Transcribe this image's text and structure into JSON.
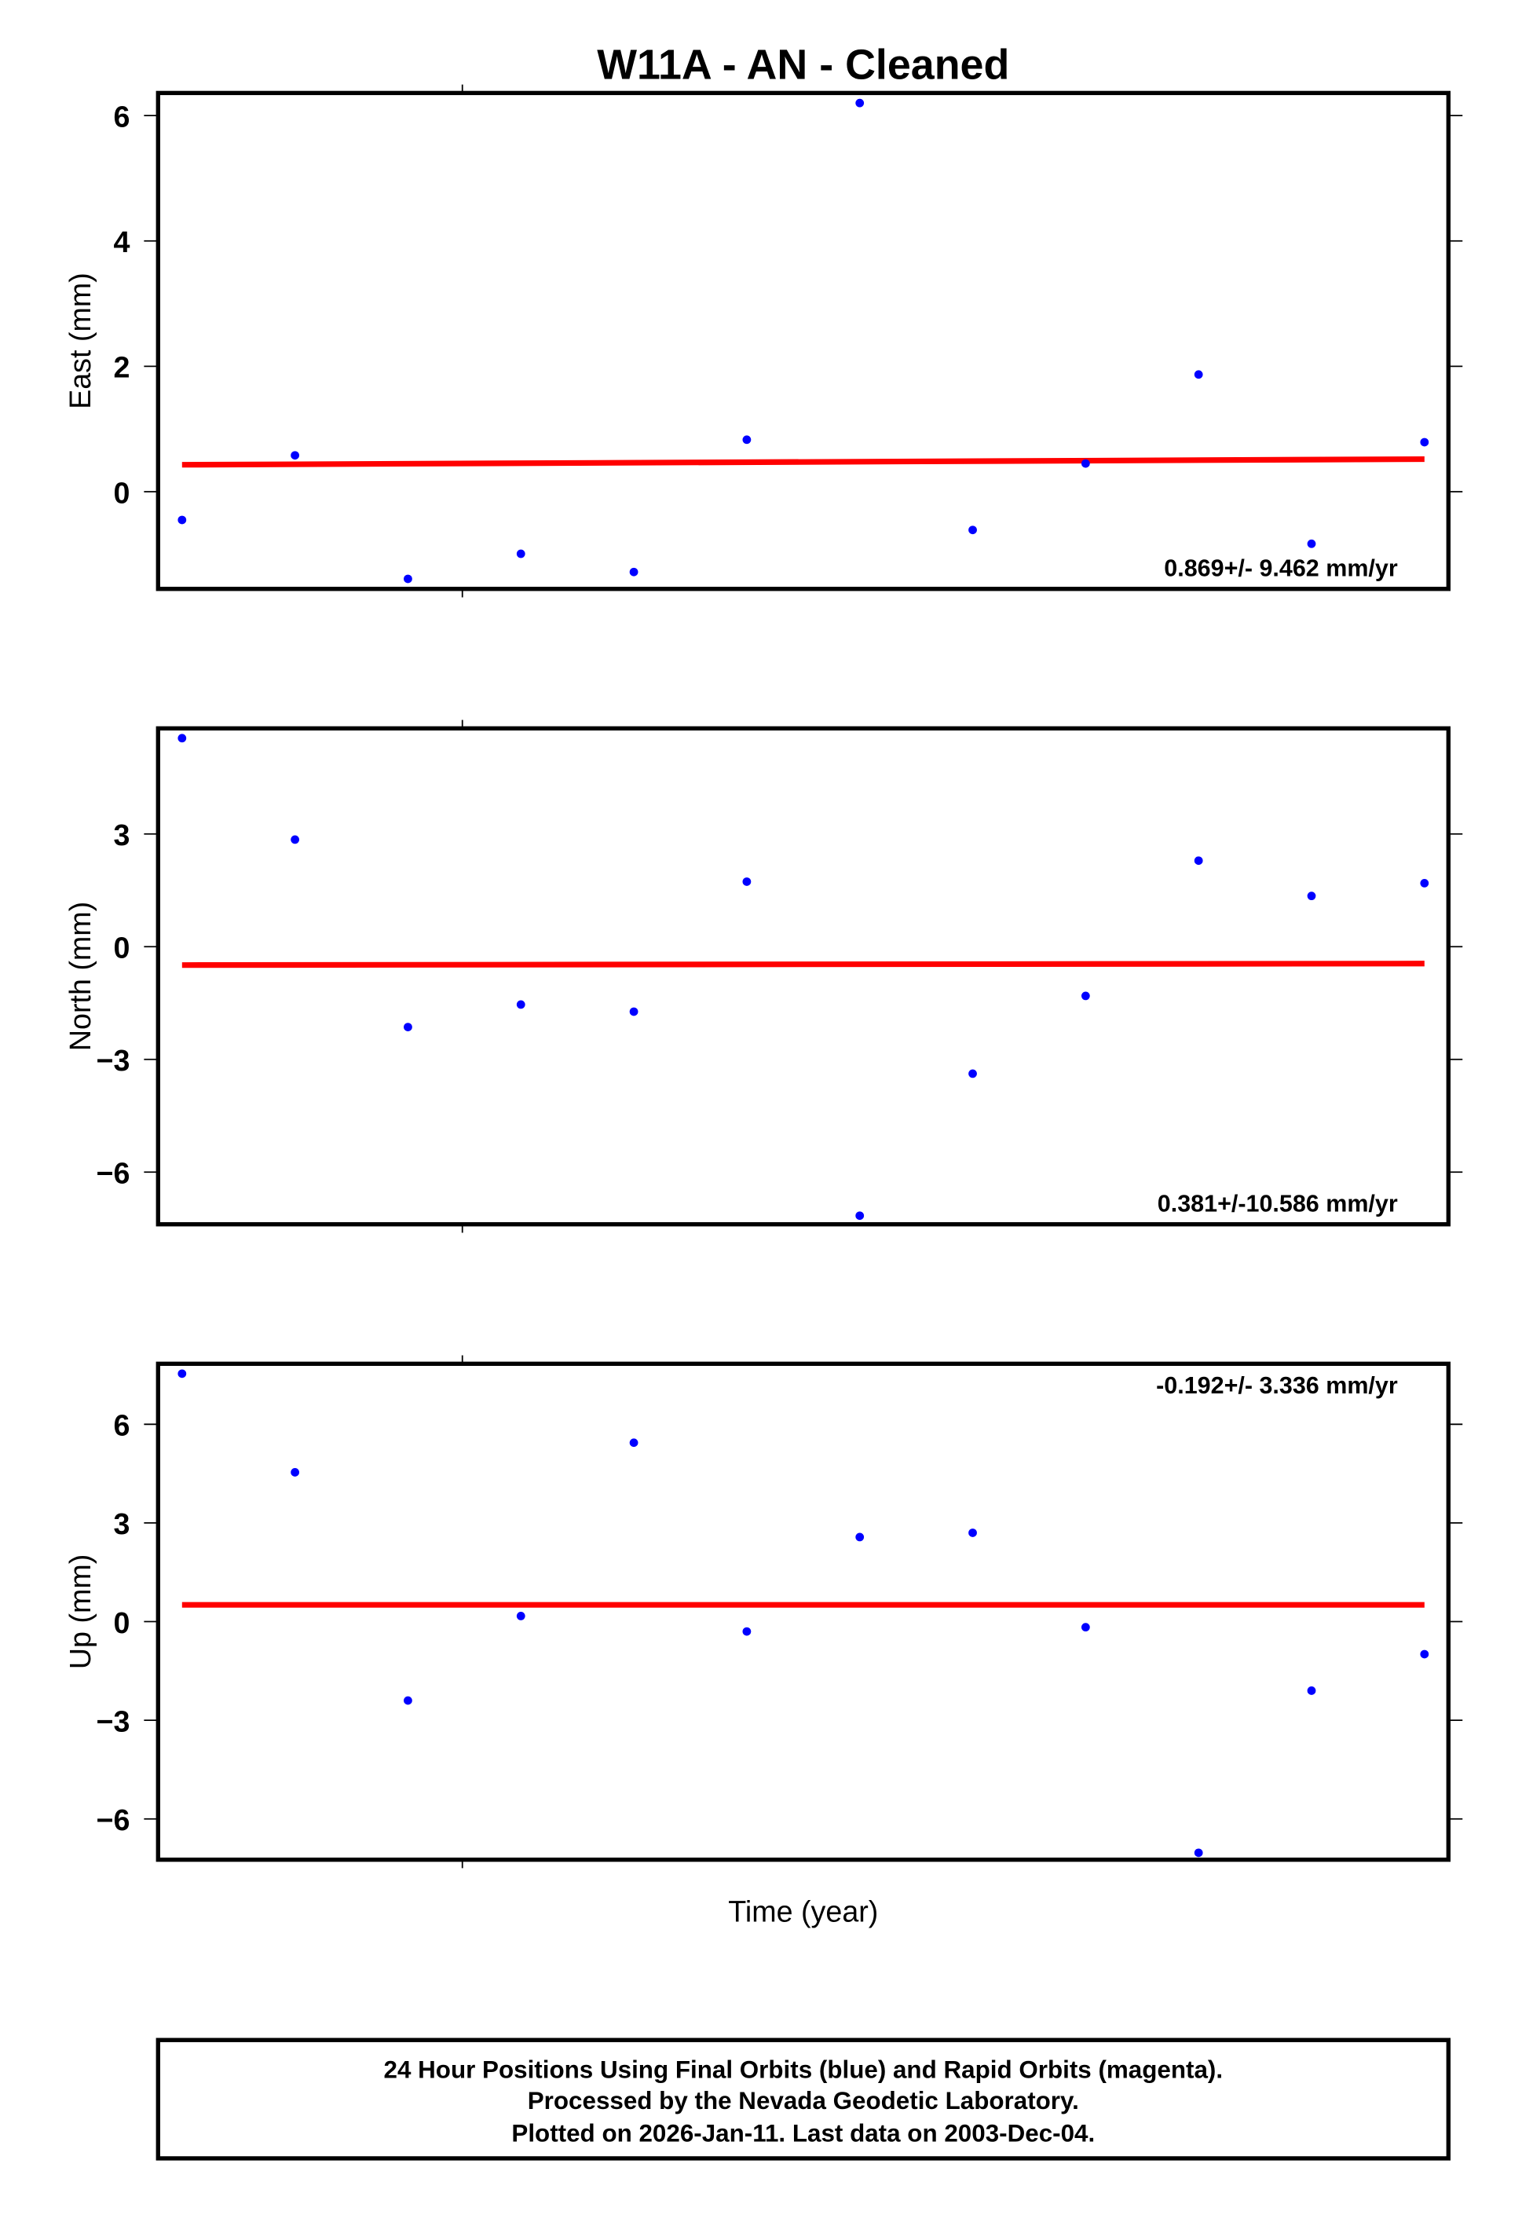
{
  "chart_data": {
    "type": "scatter",
    "title": "W11A  - AN - Cleaned",
    "xlabel": "Time (year)",
    "x": [
      0,
      1,
      2,
      3,
      4,
      5,
      6,
      7,
      8,
      9,
      10,
      11
    ],
    "panels": [
      {
        "name": "east",
        "ylabel": "East (mm)",
        "ylim": [
          -1.55,
          6.36
        ],
        "yticks": [
          0,
          2,
          4,
          6
        ],
        "ytick_labels": [
          "0",
          "2",
          "4",
          "6"
        ],
        "values": [
          -0.45,
          0.58,
          -1.39,
          -0.99,
          -1.28,
          0.83,
          6.2,
          -0.61,
          0.45,
          1.87,
          -0.83,
          0.79
        ],
        "trend": [
          0.43,
          0.52
        ],
        "rate_label": "0.869+/- 9.462 mm/yr",
        "rate_position": "bottom-right"
      },
      {
        "name": "north",
        "ylabel": "North (mm)",
        "ylim": [
          -7.39,
          5.81
        ],
        "yticks": [
          -6,
          -3,
          0,
          3
        ],
        "ytick_labels": [
          "−6",
          "−3",
          "0",
          "3"
        ],
        "values": [
          5.55,
          2.85,
          -2.14,
          -1.54,
          -1.73,
          1.73,
          -7.16,
          -3.38,
          -1.31,
          2.29,
          1.35,
          1.69
        ],
        "trend": [
          -0.49,
          -0.45
        ],
        "rate_label": "0.381+/-10.586 mm/yr",
        "rate_position": "bottom-right"
      },
      {
        "name": "up",
        "ylabel": "Up (mm)",
        "ylim": [
          -7.24,
          7.84
        ],
        "yticks": [
          -6,
          -3,
          0,
          3,
          6
        ],
        "ytick_labels": [
          "−6",
          "−3",
          "0",
          "3",
          "6"
        ],
        "values": [
          7.54,
          4.54,
          -2.4,
          0.17,
          5.44,
          -0.3,
          2.57,
          2.7,
          -0.17,
          -7.03,
          -2.1,
          -0.99
        ],
        "trend": [
          0.51,
          0.51
        ],
        "rate_label": "-0.192+/- 3.336 mm/yr",
        "rate_position": "top-right"
      }
    ],
    "colors": {
      "points": "#0000ff",
      "trend": "#ff0000"
    },
    "footer": [
      "24 Hour Positions Using Final Orbits (blue) and Rapid Orbits (magenta).",
      "Processed by the Nevada Geodetic Laboratory.",
      "Plotted on 2026-Jan-11. Last data on 2003-Dec-04."
    ]
  }
}
